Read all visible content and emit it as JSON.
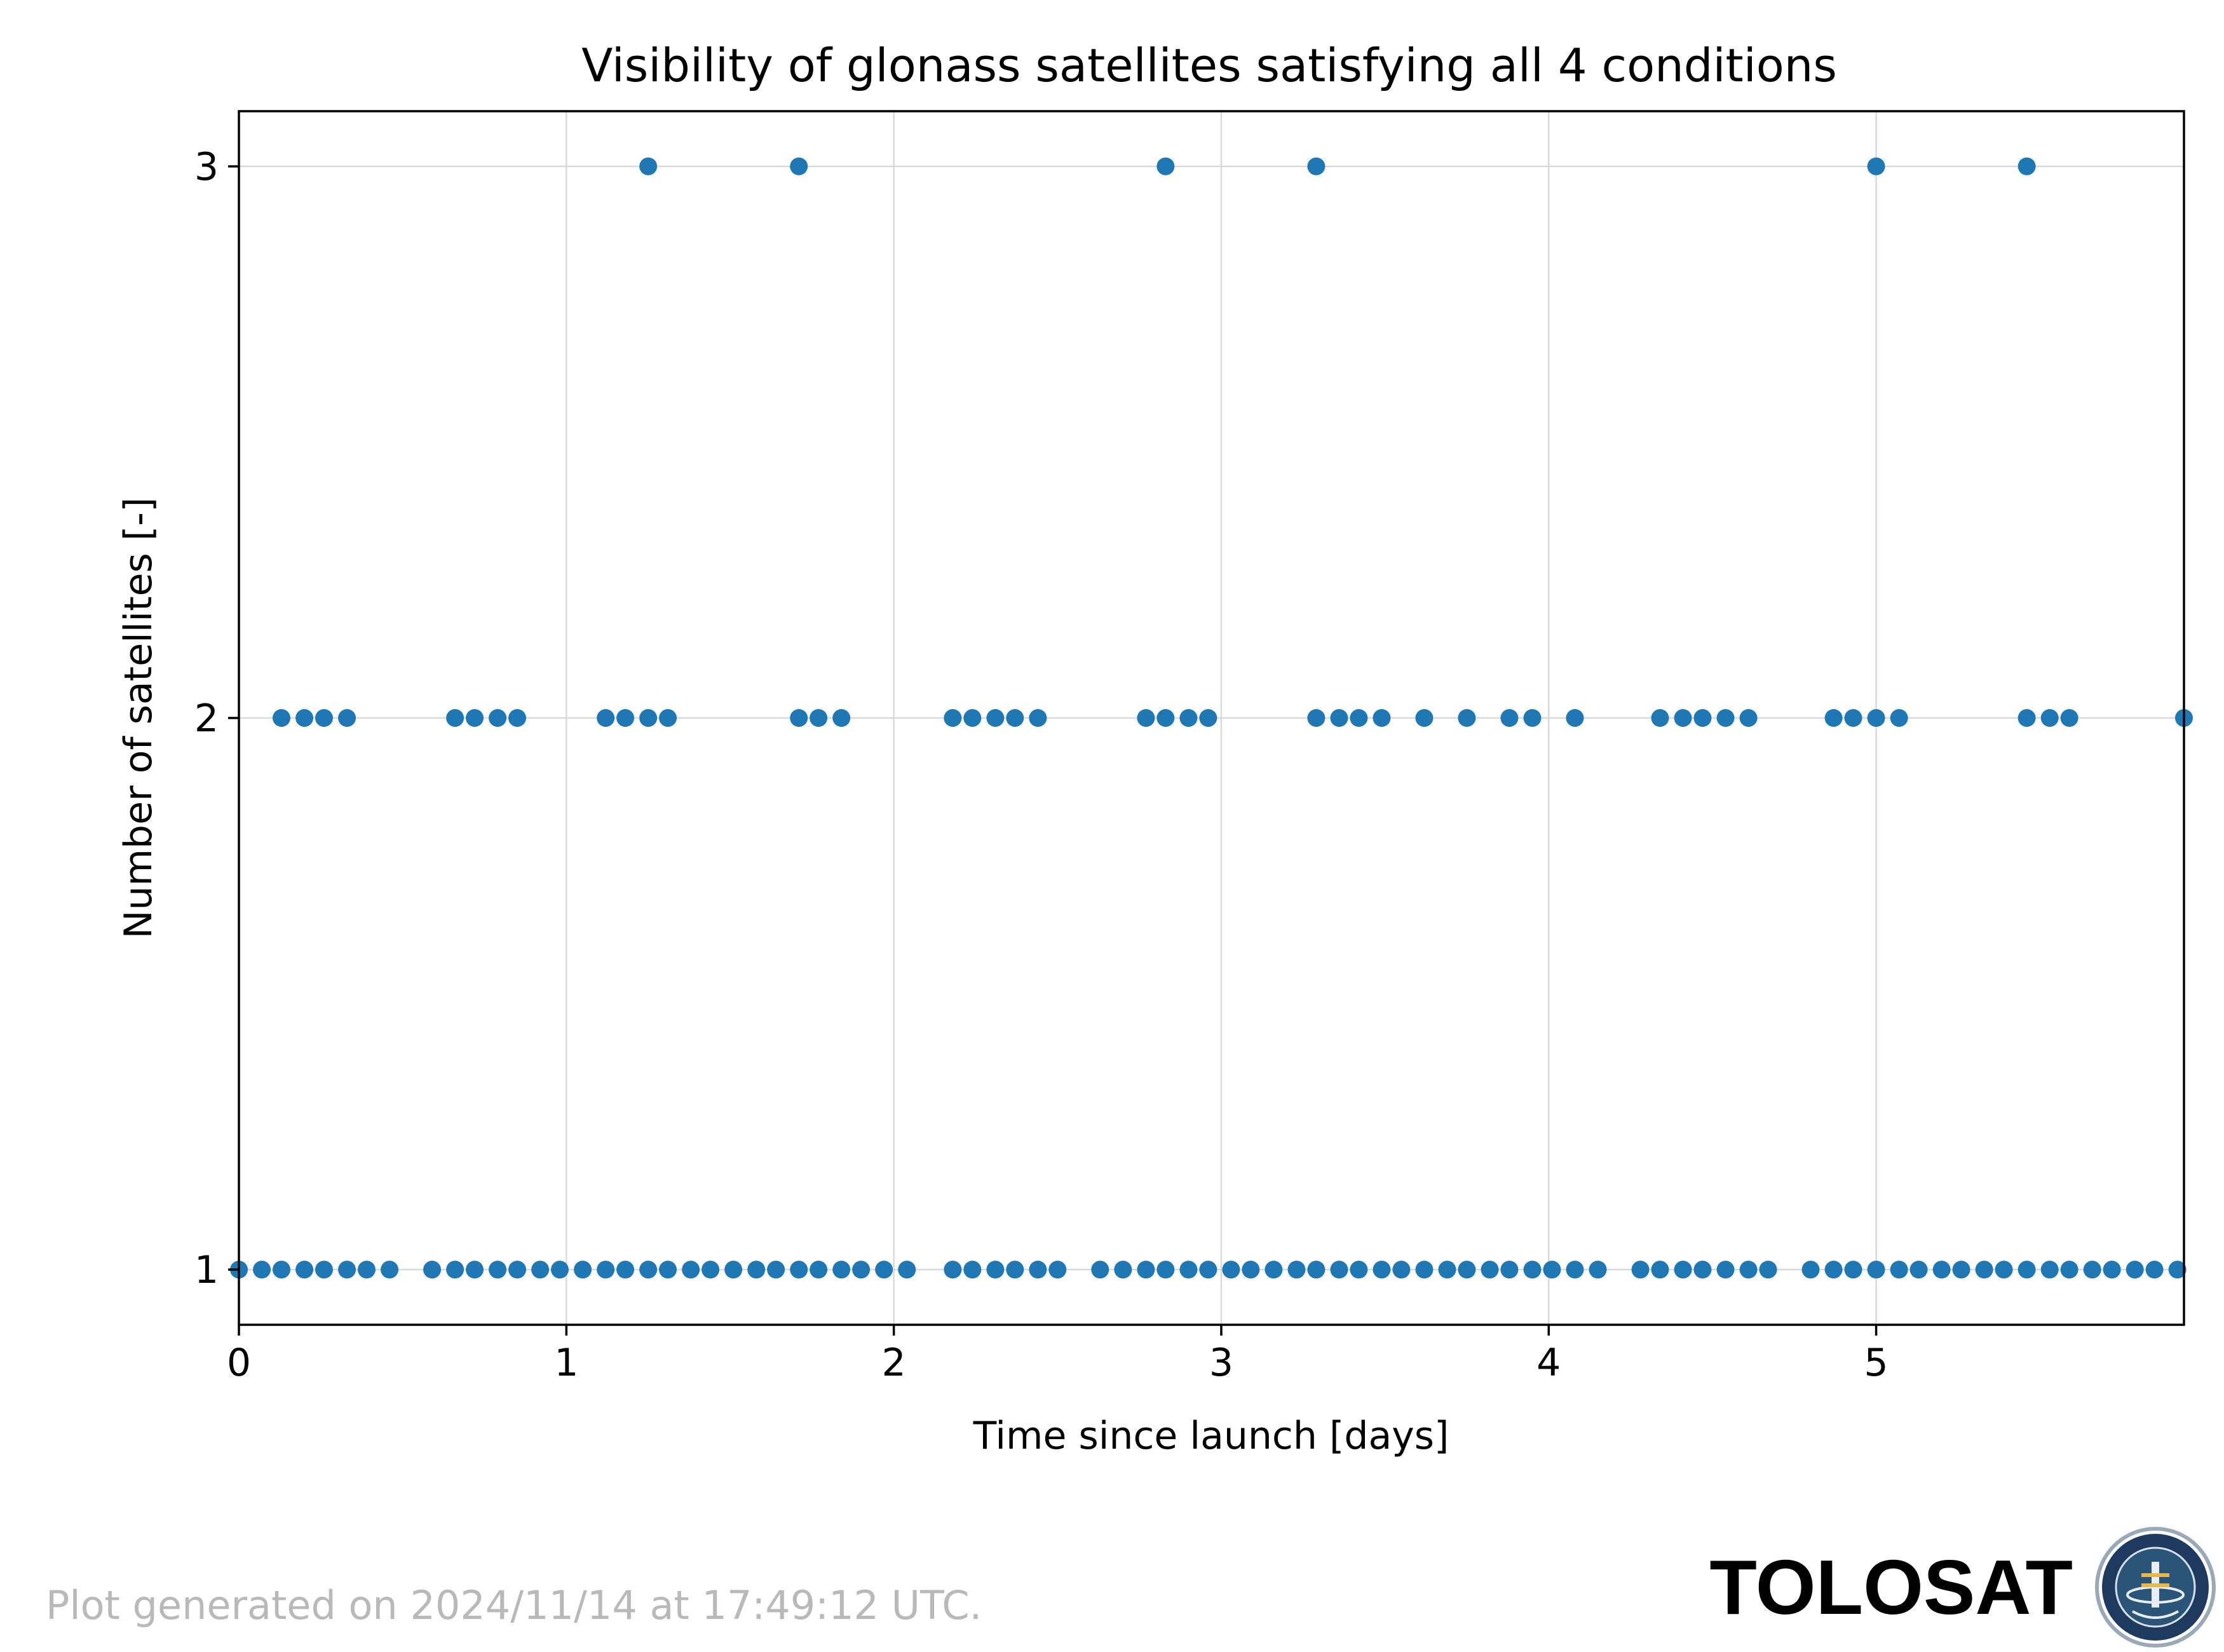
{
  "colors": {
    "marker": "#1f77b4",
    "grid": "#d9d9d9",
    "footer_text": "#b9b9b9",
    "logo_ring": "#1e3a5f"
  },
  "footer": {
    "generated_text": "Plot generated on 2024/11/14 at 17:49:12 UTC.",
    "brand_text": "TOLOSAT",
    "logo_icon": "tolosat-badge-icon",
    "logo_ring_text": "ASTRE · CC · SUPAERO · TOLOSAT"
  },
  "chart_data": {
    "type": "scatter",
    "title": "Visibility of glonass satellites satisfying all 4 conditions",
    "xlabel": "Time since launch [days]",
    "ylabel": "Number of satellites [-]",
    "xlim": [
      0,
      5.94
    ],
    "ylim": [
      0.9,
      3.1
    ],
    "x_ticks": [
      0,
      1,
      2,
      3,
      4,
      5
    ],
    "y_ticks": [
      1,
      2,
      3
    ],
    "grid": true,
    "legend": "none",
    "series": [
      {
        "values": [
          {
            "x": 0.0,
            "y": 1
          },
          {
            "x": 0.07,
            "y": 1
          },
          {
            "x": 0.13,
            "y": 1
          },
          {
            "x": 0.2,
            "y": 1
          },
          {
            "x": 0.26,
            "y": 1
          },
          {
            "x": 0.33,
            "y": 1
          },
          {
            "x": 0.39,
            "y": 1
          },
          {
            "x": 0.46,
            "y": 1
          },
          {
            "x": 0.59,
            "y": 1
          },
          {
            "x": 0.66,
            "y": 1
          },
          {
            "x": 0.72,
            "y": 1
          },
          {
            "x": 0.79,
            "y": 1
          },
          {
            "x": 0.85,
            "y": 1
          },
          {
            "x": 0.92,
            "y": 1
          },
          {
            "x": 0.98,
            "y": 1
          },
          {
            "x": 1.05,
            "y": 1
          },
          {
            "x": 1.12,
            "y": 1
          },
          {
            "x": 1.18,
            "y": 1
          },
          {
            "x": 1.25,
            "y": 1
          },
          {
            "x": 1.31,
            "y": 1
          },
          {
            "x": 1.38,
            "y": 1
          },
          {
            "x": 1.44,
            "y": 1
          },
          {
            "x": 1.51,
            "y": 1
          },
          {
            "x": 1.58,
            "y": 1
          },
          {
            "x": 1.64,
            "y": 1
          },
          {
            "x": 1.71,
            "y": 1
          },
          {
            "x": 1.77,
            "y": 1
          },
          {
            "x": 1.84,
            "y": 1
          },
          {
            "x": 1.9,
            "y": 1
          },
          {
            "x": 1.97,
            "y": 1
          },
          {
            "x": 2.04,
            "y": 1
          },
          {
            "x": 2.18,
            "y": 1
          },
          {
            "x": 2.24,
            "y": 1
          },
          {
            "x": 2.31,
            "y": 1
          },
          {
            "x": 2.37,
            "y": 1
          },
          {
            "x": 2.44,
            "y": 1
          },
          {
            "x": 2.5,
            "y": 1
          },
          {
            "x": 2.63,
            "y": 1
          },
          {
            "x": 2.7,
            "y": 1
          },
          {
            "x": 2.77,
            "y": 1
          },
          {
            "x": 2.83,
            "y": 1
          },
          {
            "x": 2.9,
            "y": 1
          },
          {
            "x": 2.96,
            "y": 1
          },
          {
            "x": 3.03,
            "y": 1
          },
          {
            "x": 3.09,
            "y": 1
          },
          {
            "x": 3.16,
            "y": 1
          },
          {
            "x": 3.23,
            "y": 1
          },
          {
            "x": 3.29,
            "y": 1
          },
          {
            "x": 3.36,
            "y": 1
          },
          {
            "x": 3.42,
            "y": 1
          },
          {
            "x": 3.49,
            "y": 1
          },
          {
            "x": 3.55,
            "y": 1
          },
          {
            "x": 3.62,
            "y": 1
          },
          {
            "x": 3.69,
            "y": 1
          },
          {
            "x": 3.75,
            "y": 1
          },
          {
            "x": 3.82,
            "y": 1
          },
          {
            "x": 3.88,
            "y": 1
          },
          {
            "x": 3.95,
            "y": 1
          },
          {
            "x": 4.01,
            "y": 1
          },
          {
            "x": 4.08,
            "y": 1
          },
          {
            "x": 4.15,
            "y": 1
          },
          {
            "x": 4.28,
            "y": 1
          },
          {
            "x": 4.34,
            "y": 1
          },
          {
            "x": 4.41,
            "y": 1
          },
          {
            "x": 4.47,
            "y": 1
          },
          {
            "x": 4.54,
            "y": 1
          },
          {
            "x": 4.61,
            "y": 1
          },
          {
            "x": 4.67,
            "y": 1
          },
          {
            "x": 4.8,
            "y": 1
          },
          {
            "x": 4.87,
            "y": 1
          },
          {
            "x": 4.93,
            "y": 1
          },
          {
            "x": 5.0,
            "y": 1
          },
          {
            "x": 5.07,
            "y": 1
          },
          {
            "x": 5.13,
            "y": 1
          },
          {
            "x": 5.2,
            "y": 1
          },
          {
            "x": 5.26,
            "y": 1
          },
          {
            "x": 5.33,
            "y": 1
          },
          {
            "x": 5.39,
            "y": 1
          },
          {
            "x": 5.46,
            "y": 1
          },
          {
            "x": 5.53,
            "y": 1
          },
          {
            "x": 5.59,
            "y": 1
          },
          {
            "x": 5.66,
            "y": 1
          },
          {
            "x": 5.72,
            "y": 1
          },
          {
            "x": 5.79,
            "y": 1
          },
          {
            "x": 5.85,
            "y": 1
          },
          {
            "x": 5.92,
            "y": 1
          },
          {
            "x": 0.13,
            "y": 2
          },
          {
            "x": 0.2,
            "y": 2
          },
          {
            "x": 0.26,
            "y": 2
          },
          {
            "x": 0.33,
            "y": 2
          },
          {
            "x": 0.66,
            "y": 2
          },
          {
            "x": 0.72,
            "y": 2
          },
          {
            "x": 0.79,
            "y": 2
          },
          {
            "x": 0.85,
            "y": 2
          },
          {
            "x": 1.12,
            "y": 2
          },
          {
            "x": 1.18,
            "y": 2
          },
          {
            "x": 1.25,
            "y": 2
          },
          {
            "x": 1.31,
            "y": 2
          },
          {
            "x": 1.71,
            "y": 2
          },
          {
            "x": 1.77,
            "y": 2
          },
          {
            "x": 1.84,
            "y": 2
          },
          {
            "x": 2.18,
            "y": 2
          },
          {
            "x": 2.24,
            "y": 2
          },
          {
            "x": 2.31,
            "y": 2
          },
          {
            "x": 2.37,
            "y": 2
          },
          {
            "x": 2.44,
            "y": 2
          },
          {
            "x": 2.77,
            "y": 2
          },
          {
            "x": 2.83,
            "y": 2
          },
          {
            "x": 2.9,
            "y": 2
          },
          {
            "x": 2.96,
            "y": 2
          },
          {
            "x": 3.29,
            "y": 2
          },
          {
            "x": 3.36,
            "y": 2
          },
          {
            "x": 3.42,
            "y": 2
          },
          {
            "x": 3.49,
            "y": 2
          },
          {
            "x": 3.62,
            "y": 2
          },
          {
            "x": 3.75,
            "y": 2
          },
          {
            "x": 3.88,
            "y": 2
          },
          {
            "x": 3.95,
            "y": 2
          },
          {
            "x": 4.08,
            "y": 2
          },
          {
            "x": 4.34,
            "y": 2
          },
          {
            "x": 4.41,
            "y": 2
          },
          {
            "x": 4.47,
            "y": 2
          },
          {
            "x": 4.54,
            "y": 2
          },
          {
            "x": 4.61,
            "y": 2
          },
          {
            "x": 4.87,
            "y": 2
          },
          {
            "x": 4.93,
            "y": 2
          },
          {
            "x": 5.0,
            "y": 2
          },
          {
            "x": 5.07,
            "y": 2
          },
          {
            "x": 5.46,
            "y": 2
          },
          {
            "x": 5.53,
            "y": 2
          },
          {
            "x": 5.59,
            "y": 2
          },
          {
            "x": 5.94,
            "y": 2
          },
          {
            "x": 1.25,
            "y": 3
          },
          {
            "x": 1.71,
            "y": 3
          },
          {
            "x": 2.83,
            "y": 3
          },
          {
            "x": 3.29,
            "y": 3
          },
          {
            "x": 5.0,
            "y": 3
          },
          {
            "x": 5.46,
            "y": 3
          }
        ]
      }
    ]
  }
}
